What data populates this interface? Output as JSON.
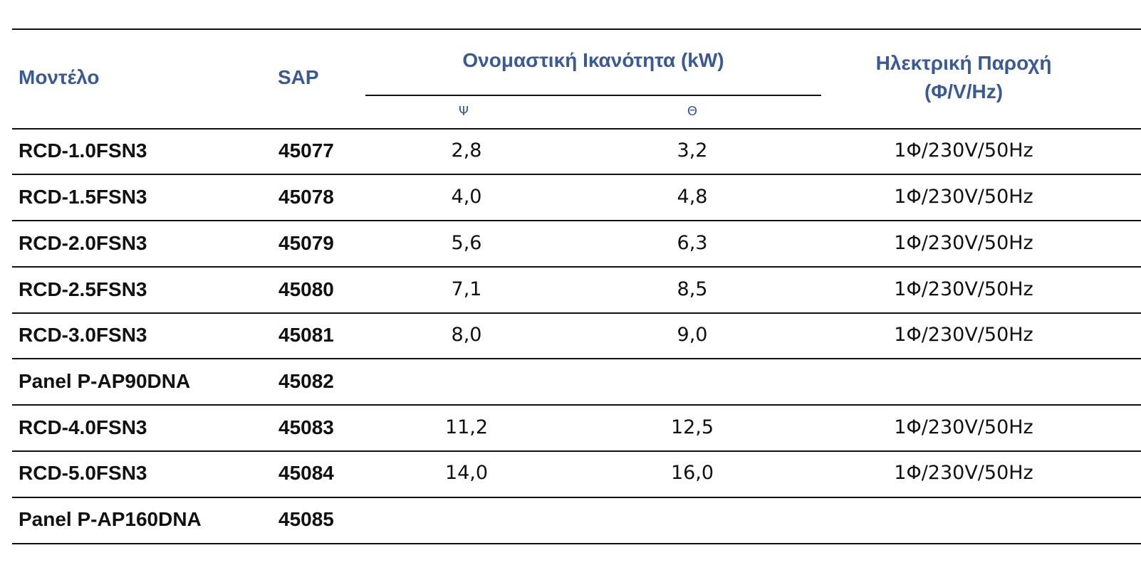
{
  "header": {
    "model": "Μοντέλο",
    "sap": "SAP",
    "capacity": "Ονομαστική Ικανότητα (kW)",
    "cooling": "Ψ",
    "heating": "Θ",
    "power_line1": "Ηλεκτρική Παροχή",
    "power_line2": "(Φ/V/Hz)"
  },
  "rows": [
    {
      "model": "RCD-1.0FSN3",
      "sap": "45077",
      "cooling": "2,8",
      "heating": "3,2",
      "power": "1Φ/230V/50Hz"
    },
    {
      "model": "RCD-1.5FSN3",
      "sap": "45078",
      "cooling": "4,0",
      "heating": "4,8",
      "power": "1Φ/230V/50Hz"
    },
    {
      "model": "RCD-2.0FSN3",
      "sap": "45079",
      "cooling": "5,6",
      "heating": "6,3",
      "power": "1Φ/230V/50Hz"
    },
    {
      "model": "RCD-2.5FSN3",
      "sap": "45080",
      "cooling": "7,1",
      "heating": "8,5",
      "power": "1Φ/230V/50Hz"
    },
    {
      "model": "RCD-3.0FSN3",
      "sap": "45081",
      "cooling": "8,0",
      "heating": "9,0",
      "power": "1Φ/230V/50Hz"
    },
    {
      "model": "Panel P-AP90DNA",
      "sap": "45082",
      "cooling": "",
      "heating": "",
      "power": ""
    },
    {
      "model": "RCD-4.0FSN3",
      "sap": "45083",
      "cooling": "11,2",
      "heating": "12,5",
      "power": "1Φ/230V/50Hz"
    },
    {
      "model": "RCD-5.0FSN3",
      "sap": "45084",
      "cooling": "14,0",
      "heating": "16,0",
      "power": "1Φ/230V/50Hz"
    },
    {
      "model": "Panel P-AP160DNA",
      "sap": "45085",
      "cooling": "",
      "heating": "",
      "power": ""
    }
  ]
}
